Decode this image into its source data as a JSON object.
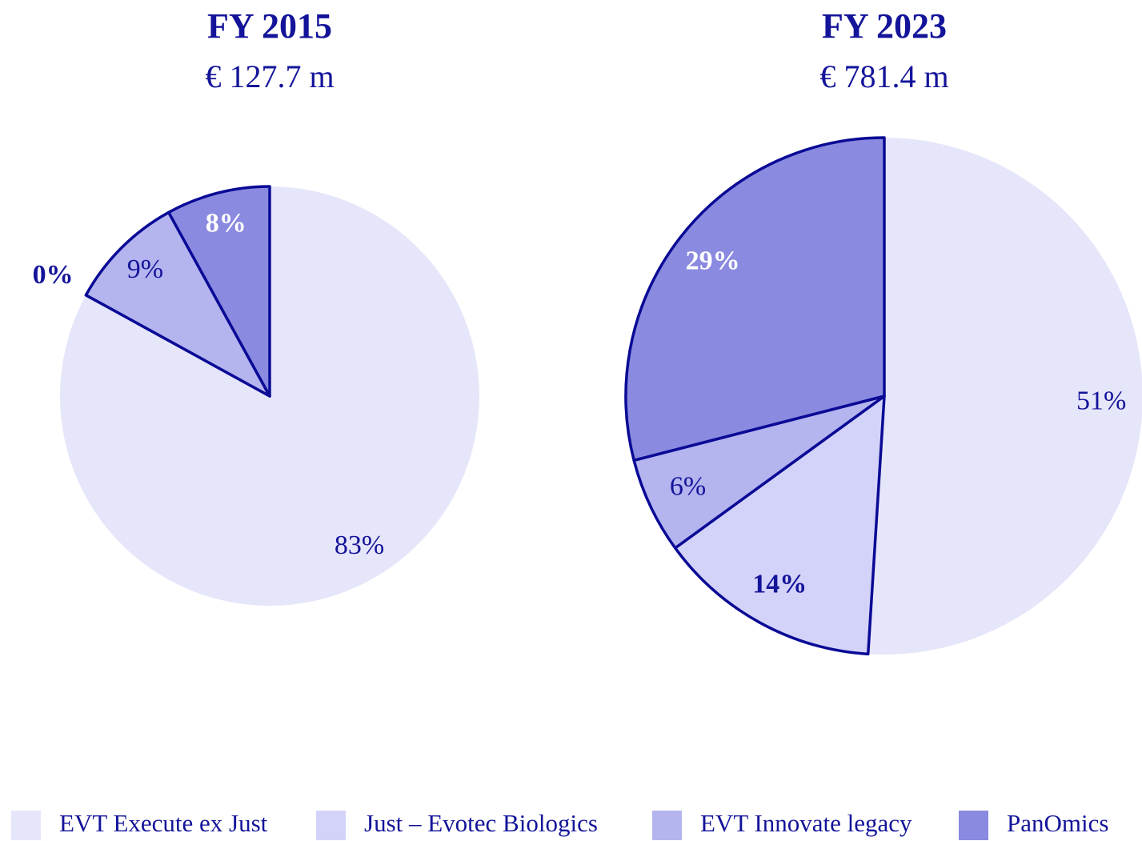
{
  "chart_data": [
    {
      "type": "pie",
      "title": "FY 2015",
      "subtitle": "€ 127.7 m",
      "categories": [
        "EVT Execute ex Just",
        "Just – Evotec Biologics",
        "EVT Innovate legacy",
        "PanOmics"
      ],
      "values": [
        83,
        0,
        9,
        8
      ],
      "value_labels": [
        "83%",
        "0%",
        "9%",
        "8%"
      ],
      "colors": [
        "#e6e6fa",
        "#d3d3f9",
        "#b4b4ef",
        "#8a8ae0"
      ],
      "edgecolor": "#0a0a96"
    },
    {
      "type": "pie",
      "title": "FY 2023",
      "subtitle": "€ 781.4 m",
      "categories": [
        "EVT Execute ex Just",
        "Just – Evotec Biologics",
        "EVT Innovate legacy",
        "PanOmics"
      ],
      "values": [
        51,
        14,
        6,
        29
      ],
      "value_labels": [
        "51%",
        "14%",
        "6%",
        "29%"
      ],
      "colors": [
        "#e6e6fa",
        "#d3d3f9",
        "#b4b4ef",
        "#8a8ae0"
      ],
      "edgecolor": "#0a0a96"
    }
  ]
}
